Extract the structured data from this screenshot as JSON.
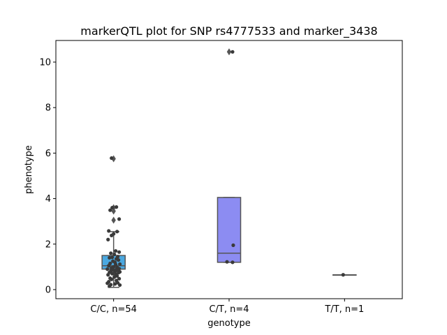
{
  "chart_data": {
    "type": "box",
    "title": "markerQTL plot for SNP rs4777533 and marker_3438",
    "xlabel": "genotype",
    "ylabel": "phenotype",
    "ylim": [
      -0.4,
      10.95
    ],
    "yticks": [
      0,
      2,
      4,
      6,
      8,
      10
    ],
    "ytick_labels": [
      "0",
      "2",
      "4",
      "6",
      "8",
      "10"
    ],
    "categories": [
      "C/C, n=54",
      "C/T, n=4",
      "T/T, n=1"
    ],
    "colors": [
      "#4aa8e0",
      "#8c8cf2",
      "#5b5b5b"
    ],
    "point_color": "#3a3a3a",
    "boxes": [
      {
        "q1": 0.9,
        "median": 1.05,
        "q3": 1.5,
        "whisker_low": 0.1,
        "whisker_high": 2.55,
        "outliers": [
          3.05,
          3.45,
          3.6,
          5.75
        ]
      },
      {
        "q1": 1.2,
        "median": 1.6,
        "q3": 4.05,
        "whisker_low": 1.2,
        "whisker_high": 4.05,
        "outliers": [
          10.45
        ]
      },
      {
        "q1": 0.65,
        "median": 0.65,
        "q3": 0.65,
        "whisker_low": 0.65,
        "whisker_high": 0.65,
        "outliers": []
      }
    ],
    "points": [
      [
        [
          -0.03,
          5.78
        ],
        [
          -0.05,
          3.49
        ],
        [
          0.04,
          3.63
        ],
        [
          -0.02,
          3.6
        ],
        [
          0.08,
          3.1
        ],
        [
          -0.07,
          2.58
        ],
        [
          0.05,
          2.55
        ],
        [
          0.0,
          2.45
        ],
        [
          -0.03,
          2.38
        ],
        [
          -0.08,
          2.2
        ],
        [
          0.03,
          1.7
        ],
        [
          0.08,
          1.65
        ],
        [
          -0.04,
          1.6
        ],
        [
          0.01,
          1.55
        ],
        [
          0.06,
          1.45
        ],
        [
          -0.02,
          1.42
        ],
        [
          -0.06,
          1.4
        ],
        [
          0.04,
          1.35
        ],
        [
          0.07,
          1.3
        ],
        [
          -0.01,
          1.25
        ],
        [
          0.02,
          1.2
        ],
        [
          -0.05,
          1.15
        ],
        [
          0.09,
          1.12
        ],
        [
          0.03,
          1.1
        ],
        [
          -0.07,
          1.05
        ],
        [
          0.0,
          1.0
        ],
        [
          0.05,
          0.98
        ],
        [
          -0.03,
          0.95
        ],
        [
          0.08,
          0.92
        ],
        [
          -0.09,
          0.9
        ],
        [
          0.04,
          0.88
        ],
        [
          -0.01,
          0.86
        ],
        [
          0.06,
          0.84
        ],
        [
          -0.04,
          0.82
        ],
        [
          0.02,
          0.8
        ],
        [
          0.09,
          0.78
        ],
        [
          -0.06,
          0.76
        ],
        [
          0.07,
          0.74
        ],
        [
          -0.02,
          0.7
        ],
        [
          0.03,
          0.68
        ],
        [
          -0.08,
          0.65
        ],
        [
          0.05,
          0.6
        ],
        [
          0.01,
          0.55
        ],
        [
          -0.05,
          0.5
        ],
        [
          0.08,
          0.48
        ],
        [
          -0.03,
          0.45
        ],
        [
          0.04,
          0.4
        ],
        [
          -0.07,
          0.35
        ],
        [
          0.06,
          0.3
        ],
        [
          -0.09,
          0.28
        ],
        [
          0.02,
          0.25
        ],
        [
          -0.04,
          0.22
        ],
        [
          0.09,
          0.2
        ],
        [
          -0.06,
          0.15
        ]
      ],
      [
        [
          0.05,
          10.45
        ],
        [
          -0.03,
          1.22
        ],
        [
          0.06,
          1.95
        ],
        [
          0.05,
          1.2
        ]
      ],
      [
        [
          -0.02,
          0.65
        ]
      ]
    ]
  }
}
